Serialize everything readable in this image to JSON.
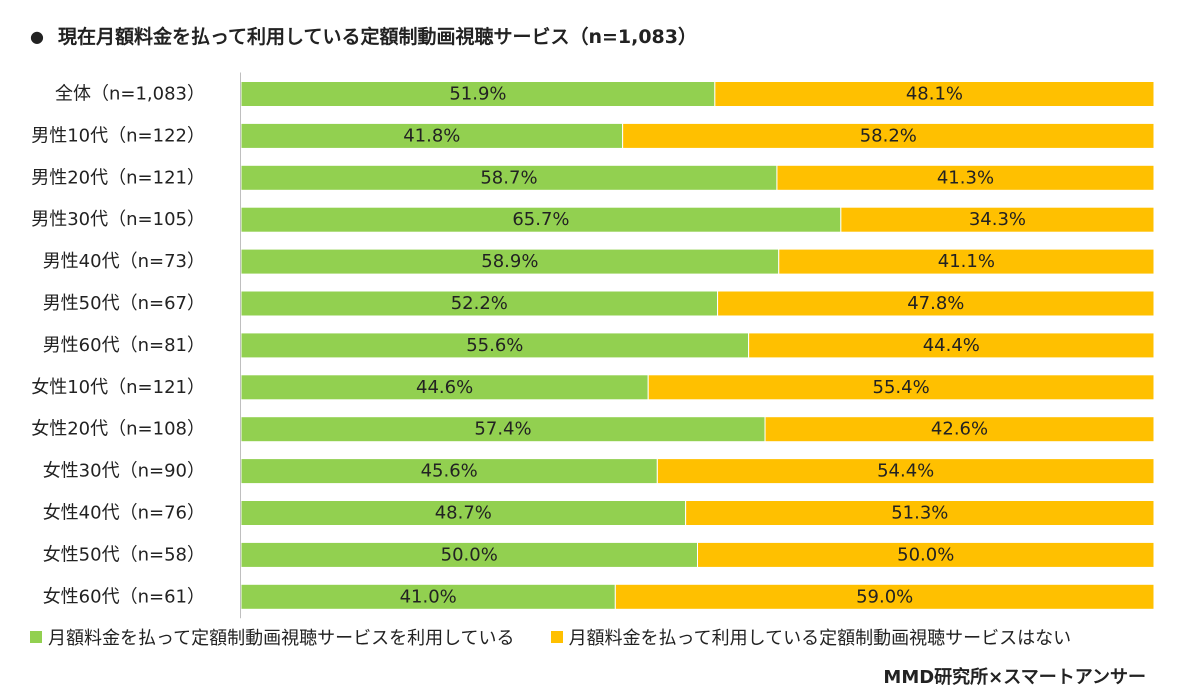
{
  "title": "現在月額料金を払って利用している定額制動画視聴サービス（n=1,083）",
  "bullet": "●",
  "credit": "MMD研究所×スマートアンサー",
  "chart_data": {
    "type": "bar",
    "orientation": "horizontal",
    "stacked": "percent",
    "categories": [
      "全体（n=1,083）",
      "男性10代（n=122）",
      "男性20代（n=121）",
      "男性30代（n=105）",
      "男性40代（n=73）",
      "男性50代（n=67）",
      "男性60代（n=81）",
      "女性10代（n=121）",
      "女性20代（n=108）",
      "女性30代（n=90）",
      "女性40代（n=76）",
      "女性50代（n=58）",
      "女性60代（n=61）"
    ],
    "series": [
      {
        "name": "月額料金を払って定額制動画視聴サービスを利用している",
        "color": "#92d050",
        "values": [
          51.9,
          41.8,
          58.7,
          65.7,
          58.9,
          52.2,
          55.6,
          44.6,
          57.4,
          45.6,
          48.7,
          50.0,
          41.0
        ],
        "labels": [
          "51.9%",
          "41.8%",
          "58.7%",
          "65.7%",
          "58.9%",
          "52.2%",
          "55.6%",
          "44.6%",
          "57.4%",
          "45.6%",
          "48.7%",
          "50.0%",
          "41.0%"
        ]
      },
      {
        "name": "月額料金を払って利用している定額制動画視聴サービスはない",
        "color": "#ffc000",
        "values": [
          48.1,
          58.2,
          41.3,
          34.3,
          41.1,
          47.8,
          44.4,
          55.4,
          42.6,
          54.4,
          51.3,
          50.0,
          59.0
        ],
        "labels": [
          "48.1%",
          "58.2%",
          "41.3%",
          "34.3%",
          "41.1%",
          "47.8%",
          "44.4%",
          "55.4%",
          "42.6%",
          "54.4%",
          "51.3%",
          "50.0%",
          "59.0%"
        ]
      }
    ],
    "xlim": [
      0,
      100
    ],
    "grid": false,
    "legend_position": "bottom"
  }
}
